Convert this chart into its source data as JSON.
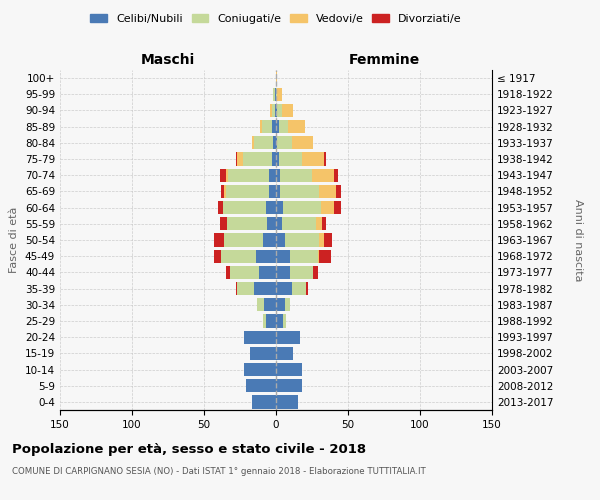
{
  "age_groups": [
    "0-4",
    "5-9",
    "10-14",
    "15-19",
    "20-24",
    "25-29",
    "30-34",
    "35-39",
    "40-44",
    "45-49",
    "50-54",
    "55-59",
    "60-64",
    "65-69",
    "70-74",
    "75-79",
    "80-84",
    "85-89",
    "90-94",
    "95-99",
    "100+"
  ],
  "birth_years": [
    "2013-2017",
    "2008-2012",
    "2003-2007",
    "1998-2002",
    "1993-1997",
    "1988-1992",
    "1983-1987",
    "1978-1982",
    "1973-1977",
    "1968-1972",
    "1963-1967",
    "1958-1962",
    "1953-1957",
    "1948-1952",
    "1943-1947",
    "1938-1942",
    "1933-1937",
    "1928-1932",
    "1923-1927",
    "1918-1922",
    "≤ 1917"
  ],
  "maschi": {
    "celibi": [
      17,
      21,
      22,
      18,
      22,
      7,
      8,
      15,
      12,
      14,
      9,
      6,
      7,
      5,
      5,
      3,
      2,
      3,
      1,
      1,
      0
    ],
    "coniugati": [
      0,
      0,
      0,
      0,
      0,
      2,
      5,
      12,
      20,
      24,
      27,
      28,
      30,
      30,
      28,
      20,
      13,
      7,
      2,
      1,
      0
    ],
    "vedovi": [
      0,
      0,
      0,
      0,
      0,
      0,
      0,
      0,
      0,
      0,
      0,
      0,
      0,
      1,
      2,
      4,
      2,
      1,
      1,
      0,
      0
    ],
    "divorziati": [
      0,
      0,
      0,
      0,
      0,
      0,
      0,
      1,
      3,
      5,
      7,
      5,
      3,
      2,
      4,
      1,
      0,
      0,
      0,
      0,
      0
    ]
  },
  "femmine": {
    "nubili": [
      15,
      18,
      18,
      12,
      17,
      5,
      6,
      11,
      10,
      10,
      6,
      4,
      5,
      3,
      3,
      2,
      1,
      2,
      1,
      0,
      0
    ],
    "coniugate": [
      0,
      0,
      0,
      0,
      0,
      2,
      4,
      10,
      16,
      19,
      24,
      24,
      26,
      27,
      22,
      16,
      10,
      6,
      3,
      1,
      0
    ],
    "vedove": [
      0,
      0,
      0,
      0,
      0,
      0,
      0,
      0,
      0,
      1,
      3,
      4,
      9,
      12,
      15,
      15,
      15,
      12,
      8,
      3,
      1
    ],
    "divorziate": [
      0,
      0,
      0,
      0,
      0,
      0,
      0,
      1,
      3,
      8,
      6,
      3,
      5,
      3,
      3,
      2,
      0,
      0,
      0,
      0,
      0
    ]
  },
  "colors": {
    "celibi_nubili": "#4a7ab5",
    "coniugati": "#c5d99a",
    "vedovi": "#f5c469",
    "divorziati": "#cc2222"
  },
  "title": "Popolazione per età, sesso e stato civile - 2018",
  "subtitle": "COMUNE DI CARPIGNANO SESIA (NO) - Dati ISTAT 1° gennaio 2018 - Elaborazione TUTTITALIA.IT",
  "xlabel_left": "Maschi",
  "xlabel_right": "Femmine",
  "ylabel_left": "Fasce di età",
  "ylabel_right": "Anni di nascita",
  "xlim": 150,
  "legend_labels": [
    "Celibi/Nubili",
    "Coniugati/e",
    "Vedovi/e",
    "Divorziati/e"
  ],
  "background_color": "#f7f7f7",
  "grid_color": "#cccccc"
}
